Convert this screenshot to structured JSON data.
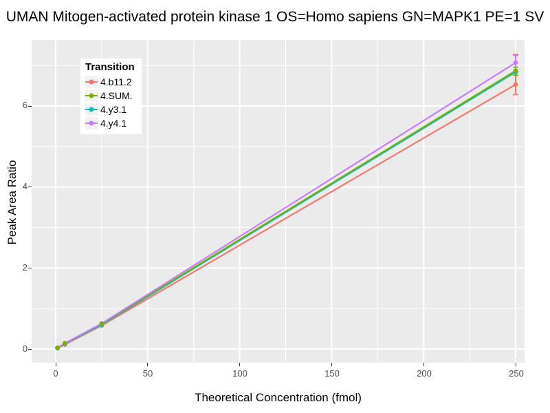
{
  "chart_data": {
    "type": "line",
    "title": "UMAN Mitogen-activated protein kinase 1 OS=Homo sapiens GN=MAPK1 PE=1 SV",
    "xlabel": "Theoretical Concentration (fmol)",
    "ylabel": "Peak Area Ratio",
    "x": [
      1,
      5,
      25,
      250
    ],
    "series": [
      {
        "name": "4.b11.2",
        "color": "#F8766D",
        "values": [
          0.02,
          0.11,
          0.58,
          6.53
        ],
        "error_bar_at_250": [
          6.28,
          7.28
        ]
      },
      {
        "name": "4.SUM.",
        "color": "#7CAE00",
        "values": [
          0.03,
          0.14,
          0.62,
          6.87
        ],
        "error_bar_at_250": [
          6.76,
          6.96
        ]
      },
      {
        "name": "4.y3.1",
        "color": "#00BFC4",
        "values": [
          0.02,
          0.13,
          0.6,
          6.84
        ],
        "error_bar_at_250": null
      },
      {
        "name": "4.y4.1",
        "color": "#C77CFF",
        "values": [
          0.03,
          0.14,
          0.63,
          7.07
        ],
        "error_bar_at_250": [
          6.85,
          7.25
        ]
      }
    ],
    "x_ticks": [
      0,
      50,
      100,
      150,
      200,
      250
    ],
    "y_ticks": [
      0,
      2,
      4,
      6
    ],
    "x_minor_ticks": [
      25,
      75,
      125,
      175,
      225
    ],
    "y_minor_ticks": [
      1,
      3,
      5,
      7
    ],
    "xlim": [
      -13,
      255
    ],
    "ylim": [
      -0.35,
      7.63
    ],
    "grid": "white major and minor gridlines on gray panel",
    "legend": {
      "title": "Transition",
      "position": "top-left-inside"
    }
  },
  "style": {
    "panel_bg": "#EBEBEB",
    "grid_color": "#FFFFFF",
    "tick_label_color": "#4D4D4D",
    "legend_key_bg": "#F2F2F2"
  }
}
